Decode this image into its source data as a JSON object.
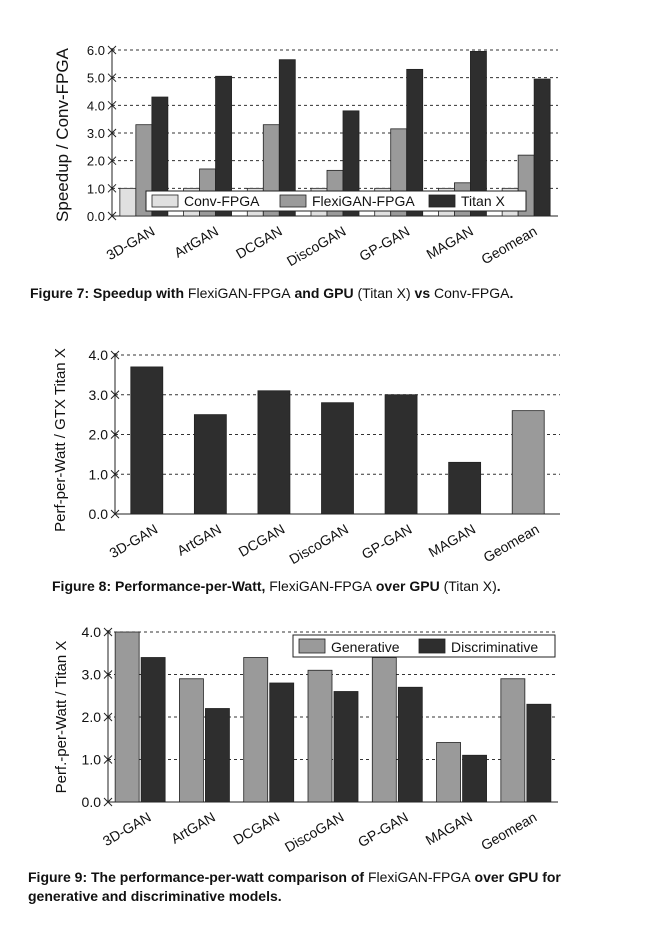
{
  "figures": [
    {
      "caption": [
        {
          "t": "Figure 7: Speedup with ",
          "b": true
        },
        {
          "t": "FlexiGAN-FPGA",
          "b": false
        },
        {
          "t": " and GPU ",
          "b": true
        },
        {
          "t": "(Titan X)",
          "b": false
        },
        {
          "t": " vs ",
          "b": true
        },
        {
          "t": "Conv-FPGA",
          "b": false
        },
        {
          "t": ".",
          "b": true
        }
      ]
    },
    {
      "caption": [
        {
          "t": "Figure 8: Performance-per-Watt, ",
          "b": true
        },
        {
          "t": "FlexiGAN-FPGA",
          "b": false
        },
        {
          "t": " over GPU ",
          "b": true
        },
        {
          "t": "(Titan X)",
          "b": false
        },
        {
          "t": ".",
          "b": true
        }
      ]
    },
    {
      "caption": [
        {
          "t": "Figure 9: The performance-per-watt comparison of ",
          "b": true
        },
        {
          "t": "FlexiGAN-FPGA",
          "b": false
        },
        {
          "t": " over GPU for generative and discriminative models.",
          "b": true
        }
      ]
    }
  ],
  "chart_data": [
    {
      "type": "bar",
      "title": "",
      "xlabel": "",
      "ylabel": "Speedup / Conv-FPGA",
      "ylim": [
        0,
        6
      ],
      "yticks": [
        "0.0",
        "1.0",
        "2.0",
        "3.0",
        "4.0",
        "5.0",
        "6.0"
      ],
      "categories": [
        "3D-GAN",
        "ArtGAN",
        "DCGAN",
        "DiscoGAN",
        "GP-GAN",
        "MAGAN",
        "Geomean"
      ],
      "series": [
        {
          "name": "Conv-FPGA",
          "color": "#e0e0e0",
          "values": [
            1,
            1,
            1,
            1,
            1,
            1,
            1
          ]
        },
        {
          "name": "FlexiGAN-FPGA",
          "color": "#9a9a9a",
          "values": [
            3.3,
            1.7,
            3.3,
            1.65,
            3.15,
            1.2,
            2.2
          ]
        },
        {
          "name": "Titan X",
          "color": "#2e2e2e",
          "values": [
            4.3,
            5.05,
            5.65,
            3.8,
            5.3,
            5.95,
            4.95
          ]
        }
      ],
      "legend": "bottom-center, inside",
      "grid": "horizontal dashed"
    },
    {
      "type": "bar",
      "title": "",
      "xlabel": "",
      "ylabel": "Perf-per-Watt / GTX Titan X",
      "ylim": [
        0,
        4
      ],
      "yticks": [
        "0.0",
        "1.0",
        "2.0",
        "3.0",
        "4.0"
      ],
      "categories": [
        "3D-GAN",
        "ArtGAN",
        "DCGAN",
        "DiscoGAN",
        "GP-GAN",
        "MAGAN",
        "Geomean"
      ],
      "values": [
        3.7,
        2.5,
        3.1,
        2.8,
        3.0,
        1.3,
        2.6
      ],
      "colors": [
        "#2e2e2e",
        "#2e2e2e",
        "#2e2e2e",
        "#2e2e2e",
        "#2e2e2e",
        "#2e2e2e",
        "#9a9a9a"
      ],
      "grid": "horizontal dashed"
    },
    {
      "type": "bar",
      "title": "",
      "xlabel": "",
      "ylabel": "Perf.-per-Watt / Titan X",
      "ylim": [
        0,
        4
      ],
      "yticks": [
        "0.0",
        "1.0",
        "2.0",
        "3.0",
        "4.0"
      ],
      "categories": [
        "3D-GAN",
        "ArtGAN",
        "DCGAN",
        "DiscoGAN",
        "GP-GAN",
        "MAGAN",
        "Geomean"
      ],
      "series": [
        {
          "name": "Generative",
          "color": "#9a9a9a",
          "values": [
            4.0,
            2.9,
            3.4,
            3.1,
            3.4,
            1.4,
            2.9
          ]
        },
        {
          "name": "Discriminative",
          "color": "#2e2e2e",
          "values": [
            3.4,
            2.2,
            2.8,
            2.6,
            2.7,
            1.1,
            2.3
          ]
        }
      ],
      "legend": "top-right, inside",
      "grid": "horizontal dashed"
    }
  ]
}
